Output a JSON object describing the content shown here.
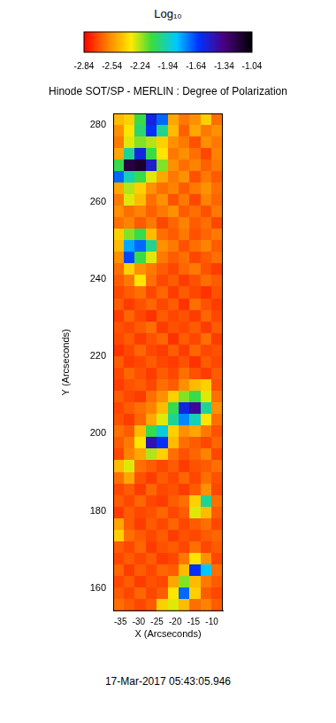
{
  "chart_data": {
    "type": "heatmap",
    "title": "Hinode SOT/SP - MERLIN : Degree of Polarization",
    "subtitle": "17-Mar-2017 05:43:05.946",
    "x_label": "X (Arcseconds)",
    "y_label": "Y (Arcseconds)",
    "xlim": [
      -37,
      -7
    ],
    "xticks": [
      -35,
      -30,
      -25,
      -20,
      -15,
      -10
    ],
    "ylim": [
      154,
      283
    ],
    "yticks": [
      160,
      180,
      200,
      220,
      240,
      260,
      280
    ],
    "grid": false,
    "colorbar": {
      "title": "Log₁₀",
      "range": [
        -2.84,
        -1.04
      ],
      "ticks": [
        -2.84,
        -2.54,
        -2.24,
        -1.94,
        -1.64,
        -1.34,
        -1.04
      ]
    },
    "x": [
      -35.5,
      -32.5,
      -29.5,
      -26.5,
      -23.5,
      -20.5,
      -17.5,
      -14.5,
      -11.5,
      -8.5
    ],
    "y": [
      281.5,
      278.5,
      275.5,
      272.5,
      269.5,
      266.5,
      263.5,
      260.5,
      257.5,
      254.5,
      251.5,
      248.5,
      245.5,
      242.5,
      239.5,
      236.5,
      233.5,
      230.5,
      227.5,
      224.5,
      221.5,
      218.5,
      215.5,
      212.5,
      209.5,
      206.5,
      203.5,
      200.5,
      197.5,
      194.5,
      191.5,
      188.5,
      185.5,
      182.5,
      179.5,
      176.5,
      173.5,
      170.5,
      167.5,
      164.5,
      161.5,
      158.5,
      155.5
    ],
    "values": [
      [
        -2.45,
        -2.4,
        -2.1,
        -1.55,
        -1.7,
        -2.5,
        -2.6,
        -2.55,
        -2.4,
        -2.62
      ],
      [
        -2.55,
        -2.35,
        -2.05,
        -1.6,
        -2.0,
        -2.45,
        -2.65,
        -2.5,
        -2.6,
        -2.55
      ],
      [
        -2.6,
        -2.3,
        -2.2,
        -2.25,
        -2.4,
        -2.55,
        -2.6,
        -2.68,
        -2.55,
        -2.6
      ],
      [
        -2.5,
        -2.0,
        -1.55,
        -2.1,
        -2.35,
        -2.6,
        -2.55,
        -2.62,
        -2.7,
        -2.58
      ],
      [
        -2.1,
        -1.2,
        -1.15,
        -1.5,
        -2.2,
        -2.55,
        -2.62,
        -2.58,
        -2.65,
        -2.6
      ],
      [
        -1.7,
        -1.95,
        -2.1,
        -2.3,
        -2.5,
        -2.6,
        -2.55,
        -2.68,
        -2.6,
        -2.66
      ],
      [
        -2.5,
        -2.25,
        -2.4,
        -2.55,
        -2.62,
        -2.58,
        -2.66,
        -2.6,
        -2.55,
        -2.62
      ],
      [
        -2.6,
        -2.3,
        -2.45,
        -2.62,
        -2.55,
        -2.68,
        -2.6,
        -2.7,
        -2.58,
        -2.64
      ],
      [
        -2.55,
        -2.62,
        -2.58,
        -2.65,
        -2.6,
        -2.55,
        -2.66,
        -2.62,
        -2.68,
        -2.6
      ],
      [
        -2.62,
        -2.58,
        -2.66,
        -2.6,
        -2.7,
        -2.64,
        -2.58,
        -2.66,
        -2.62,
        -2.7
      ],
      [
        -2.4,
        -2.2,
        -2.1,
        -2.45,
        -2.62,
        -2.66,
        -2.6,
        -2.68,
        -2.64,
        -2.6
      ],
      [
        -2.45,
        -1.8,
        -1.7,
        -2.0,
        -2.55,
        -2.6,
        -2.68,
        -2.62,
        -2.58,
        -2.66
      ],
      [
        -2.55,
        -1.65,
        -2.1,
        -2.3,
        -2.6,
        -2.66,
        -2.62,
        -2.7,
        -2.66,
        -2.62
      ],
      [
        -2.62,
        -2.4,
        -2.55,
        -2.6,
        -2.66,
        -2.7,
        -2.64,
        -2.6,
        -2.68,
        -2.72
      ],
      [
        -2.66,
        -2.6,
        -2.35,
        -2.62,
        -2.7,
        -2.66,
        -2.72,
        -2.68,
        -2.62,
        -2.66
      ],
      [
        -2.7,
        -2.66,
        -2.62,
        -2.7,
        -2.64,
        -2.72,
        -2.66,
        -2.7,
        -2.74,
        -2.68
      ],
      [
        -2.66,
        -2.72,
        -2.68,
        -2.64,
        -2.7,
        -2.66,
        -2.74,
        -2.62,
        -2.68,
        -2.72
      ],
      [
        -2.72,
        -2.64,
        -2.7,
        -2.74,
        -2.66,
        -2.7,
        -2.68,
        -2.72,
        -2.64,
        -2.7
      ],
      [
        -2.68,
        -2.7,
        -2.66,
        -2.62,
        -2.72,
        -2.68,
        -2.7,
        -2.66,
        -2.72,
        -2.66
      ],
      [
        -2.7,
        -2.66,
        -2.72,
        -2.68,
        -2.64,
        -2.74,
        -2.66,
        -2.7,
        -2.62,
        -2.72
      ],
      [
        -2.74,
        -2.7,
        -2.64,
        -2.7,
        -2.72,
        -2.66,
        -2.72,
        -2.64,
        -2.7,
        -2.68
      ],
      [
        -2.66,
        -2.72,
        -2.7,
        -2.66,
        -2.7,
        -2.72,
        -2.68,
        -2.74,
        -2.66,
        -2.7
      ],
      [
        -2.7,
        -2.64,
        -2.68,
        -2.72,
        -2.66,
        -2.7,
        -2.62,
        -2.68,
        -2.72,
        -2.66
      ],
      [
        -2.72,
        -2.68,
        -2.66,
        -2.7,
        -2.62,
        -2.66,
        -2.55,
        -2.45,
        -2.4,
        -2.68
      ],
      [
        -2.66,
        -2.7,
        -2.72,
        -2.62,
        -2.55,
        -2.4,
        -2.2,
        -2.1,
        -2.3,
        -2.62
      ],
      [
        -2.7,
        -2.66,
        -2.62,
        -2.58,
        -2.45,
        -2.1,
        -1.55,
        -1.4,
        -2.0,
        -2.55
      ],
      [
        -2.68,
        -2.72,
        -2.64,
        -2.5,
        -2.3,
        -2.0,
        -1.75,
        -1.95,
        -2.35,
        -2.62
      ],
      [
        -2.62,
        -2.66,
        -2.45,
        -2.1,
        -1.9,
        -2.4,
        -2.55,
        -2.5,
        -2.6,
        -2.68
      ],
      [
        -2.66,
        -2.6,
        -2.35,
        -1.45,
        -1.6,
        -2.45,
        -2.62,
        -2.66,
        -2.7,
        -2.64
      ],
      [
        -2.7,
        -2.58,
        -2.5,
        -2.25,
        -2.4,
        -2.62,
        -2.68,
        -2.64,
        -2.58,
        -2.7
      ],
      [
        -2.45,
        -2.3,
        -2.62,
        -2.66,
        -2.7,
        -2.66,
        -2.72,
        -2.68,
        -2.66,
        -2.62
      ],
      [
        -2.62,
        -2.5,
        -2.68,
        -2.72,
        -2.66,
        -2.7,
        -2.64,
        -2.7,
        -2.62,
        -2.68
      ],
      [
        -2.7,
        -2.66,
        -2.72,
        -2.64,
        -2.7,
        -2.68,
        -2.72,
        -2.66,
        -2.55,
        -2.7
      ],
      [
        -2.66,
        -2.7,
        -2.64,
        -2.7,
        -2.72,
        -2.66,
        -2.62,
        -2.4,
        -2.0,
        -2.62
      ],
      [
        -2.72,
        -2.66,
        -2.7,
        -2.68,
        -2.64,
        -2.7,
        -2.66,
        -2.3,
        -2.45,
        -2.66
      ],
      [
        -2.5,
        -2.66,
        -2.72,
        -2.66,
        -2.7,
        -2.64,
        -2.7,
        -2.66,
        -2.62,
        -2.7
      ],
      [
        -2.4,
        -2.62,
        -2.66,
        -2.7,
        -2.66,
        -2.72,
        -2.68,
        -2.7,
        -2.66,
        -2.64
      ],
      [
        -2.66,
        -2.7,
        -2.64,
        -2.72,
        -2.68,
        -2.66,
        -2.7,
        -2.62,
        -2.7,
        -2.66
      ],
      [
        -2.7,
        -2.66,
        -2.7,
        -2.66,
        -2.72,
        -2.7,
        -2.6,
        -2.35,
        -2.55,
        -2.7
      ],
      [
        -2.64,
        -2.72,
        -2.66,
        -2.7,
        -2.64,
        -2.66,
        -2.45,
        -1.6,
        -1.85,
        -2.62
      ],
      [
        -2.7,
        -2.66,
        -2.72,
        -2.68,
        -2.7,
        -2.5,
        -2.2,
        -2.45,
        -2.6,
        -2.66
      ],
      [
        -2.66,
        -2.7,
        -2.64,
        -2.7,
        -2.66,
        -2.35,
        -1.7,
        -2.4,
        -2.66,
        -2.7
      ],
      [
        -2.62,
        -2.66,
        -2.7,
        -2.66,
        -2.4,
        -2.3,
        -2.45,
        -2.62,
        -2.58,
        -2.66
      ]
    ]
  }
}
